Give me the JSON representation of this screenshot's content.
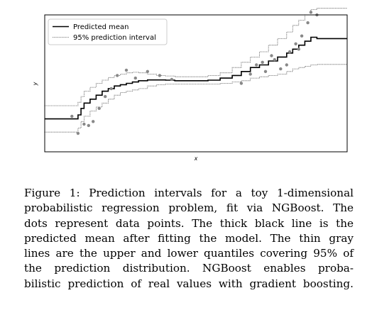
{
  "chart_data": {
    "type": "line",
    "xlabel": "x",
    "ylabel": "y",
    "xlim": [
      0,
      10
    ],
    "ylim": [
      -2.6,
      2.6
    ],
    "grid": false,
    "legend_location": "top-left",
    "axis_ticks": false,
    "series": [
      {
        "name": "Predicted mean",
        "style": "thick solid black",
        "x": [
          0.0,
          0.5,
          1.0,
          1.1,
          1.2,
          1.3,
          1.5,
          1.7,
          1.9,
          2.1,
          2.3,
          2.5,
          2.7,
          2.9,
          3.1,
          3.4,
          3.7,
          4.0,
          4.3,
          4.6,
          5.0,
          5.4,
          5.8,
          6.2,
          6.5,
          6.8,
          7.1,
          7.4,
          7.7,
          8.0,
          8.2,
          8.4,
          8.6,
          8.8,
          9.0,
          9.3,
          9.6,
          10.0
        ],
        "y": [
          -1.35,
          -1.35,
          -1.35,
          -1.2,
          -0.95,
          -0.75,
          -0.6,
          -0.45,
          -0.3,
          -0.2,
          -0.1,
          -0.05,
          0.0,
          0.05,
          0.1,
          0.13,
          0.13,
          0.12,
          0.1,
          0.1,
          0.1,
          0.12,
          0.2,
          0.3,
          0.45,
          0.6,
          0.7,
          0.85,
          1.0,
          1.15,
          1.3,
          1.45,
          1.6,
          1.75,
          1.7,
          1.7,
          1.7,
          1.7
        ]
      },
      {
        "name": "95% prediction interval",
        "style": "thin dotted gray (upper bound)",
        "x": [
          0.0,
          0.5,
          1.0,
          1.1,
          1.2,
          1.3,
          1.5,
          1.7,
          1.9,
          2.1,
          2.3,
          2.5,
          2.7,
          2.9,
          3.1,
          3.4,
          3.7,
          4.0,
          4.3,
          4.6,
          5.0,
          5.4,
          5.8,
          6.2,
          6.5,
          6.8,
          7.1,
          7.4,
          7.7,
          8.0,
          8.2,
          8.4,
          8.6,
          8.8,
          9.0,
          9.3,
          9.6,
          10.0
        ],
        "y": [
          -0.85,
          -0.85,
          -0.85,
          -0.72,
          -0.5,
          -0.3,
          -0.15,
          0.0,
          0.12,
          0.22,
          0.3,
          0.35,
          0.4,
          0.42,
          0.4,
          0.35,
          0.3,
          0.28,
          0.25,
          0.25,
          0.25,
          0.3,
          0.4,
          0.6,
          0.8,
          1.0,
          1.2,
          1.45,
          1.7,
          1.95,
          2.2,
          2.4,
          2.6,
          2.8,
          2.85,
          2.85,
          2.85,
          2.85
        ]
      },
      {
        "name": "95% prediction interval",
        "style": "thin dotted gray (lower bound)",
        "x": [
          0.0,
          0.5,
          1.0,
          1.1,
          1.2,
          1.3,
          1.5,
          1.7,
          1.9,
          2.1,
          2.3,
          2.5,
          2.7,
          2.9,
          3.1,
          3.4,
          3.7,
          4.0,
          4.3,
          4.6,
          5.0,
          5.4,
          5.8,
          6.2,
          6.5,
          6.8,
          7.1,
          7.4,
          7.7,
          8.0,
          8.2,
          8.4,
          8.6,
          8.8,
          9.0,
          9.3,
          9.6,
          10.0
        ],
        "y": [
          -1.85,
          -1.85,
          -1.85,
          -1.7,
          -1.45,
          -1.25,
          -1.05,
          -0.9,
          -0.75,
          -0.6,
          -0.45,
          -0.35,
          -0.3,
          -0.25,
          -0.2,
          -0.1,
          -0.05,
          -0.03,
          -0.03,
          -0.03,
          -0.03,
          -0.03,
          0.0,
          0.05,
          0.1,
          0.2,
          0.25,
          0.3,
          0.35,
          0.45,
          0.55,
          0.6,
          0.65,
          0.7,
          0.72,
          0.72,
          0.72,
          0.72
        ]
      }
    ],
    "points": {
      "name": "data points",
      "color": "#888888",
      "x": [
        0.9,
        1.1,
        1.3,
        1.45,
        1.6,
        1.8,
        2.0,
        2.2,
        2.4,
        2.7,
        3.0,
        3.4,
        3.8,
        4.2,
        6.5,
        6.8,
        7.0,
        7.2,
        7.3,
        7.5,
        7.6,
        7.8,
        8.0,
        8.1,
        8.3,
        8.4,
        8.5,
        8.7,
        8.8,
        9.0
      ],
      "y": [
        -1.25,
        -1.9,
        -1.55,
        -1.6,
        -1.45,
        -0.95,
        -0.5,
        -0.2,
        0.3,
        0.5,
        0.2,
        0.45,
        0.3,
        0.15,
        0.0,
        0.35,
        0.7,
        0.8,
        0.45,
        1.05,
        0.9,
        0.55,
        0.7,
        1.2,
        1.5,
        1.3,
        1.8,
        2.3,
        2.7,
        2.6
      ]
    },
    "colors": {
      "mean": "#000000",
      "interval": "#555555",
      "points": "#888888",
      "frame": "#000000"
    }
  },
  "legend": {
    "mean_label": "Predicted mean",
    "interval_label": "95% prediction interval"
  },
  "caption": {
    "lines": [
      "Figure 1: Prediction intervals for a toy 1-dimensional",
      "probabilistic regression problem, fit via NGBoost. The",
      "dots represent data points. The thick black line is the",
      "predicted mean after fitting the model. The thin gray",
      "lines are the upper and lower quantiles covering 95% of",
      "the prediction distribution. NGBoost enables proba-",
      "bilistic prediction of real values with gradient boosting."
    ]
  }
}
